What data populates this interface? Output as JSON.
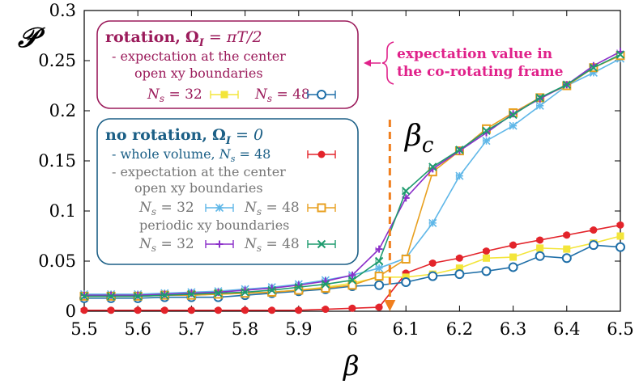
{
  "colors": {
    "rotation_box": "#9b1b5b",
    "no_rotation_box": "#1b5f86",
    "annotation": "#e0218a",
    "beta_c": "#f07f1e"
  },
  "chart_data": {
    "type": "line",
    "xlabel": "β",
    "ylabel": "𝒫",
    "xlim": [
      5.5,
      6.5
    ],
    "ylim": [
      0,
      0.3
    ],
    "xticks": [
      "5.5",
      "5.6",
      "5.7",
      "5.8",
      "5.9",
      "6",
      "6.1",
      "6.2",
      "6.3",
      "6.4",
      "6.5"
    ],
    "yticks": [
      "0",
      "0.05",
      "0.1",
      "0.15",
      "0.2",
      "0.25",
      "0.3"
    ],
    "beta_c": 6.07,
    "beta_c_label": "β",
    "beta_c_sub": "c",
    "series": [
      {
        "name": "whole volume N_s=48 (no rotation)",
        "color": "#e3242b",
        "marker": "dot",
        "x": [
          5.5,
          5.55,
          5.6,
          5.65,
          5.7,
          5.75,
          5.8,
          5.85,
          5.9,
          5.95,
          6.0,
          6.05,
          6.1,
          6.15,
          6.2,
          6.25,
          6.3,
          6.35,
          6.4,
          6.45,
          6.5
        ],
        "y": [
          0.001,
          0.001,
          0.001,
          0.001,
          0.001,
          0.001,
          0.001,
          0.001,
          0.001,
          0.002,
          0.003,
          0.004,
          0.038,
          0.048,
          0.053,
          0.06,
          0.066,
          0.071,
          0.076,
          0.081,
          0.086
        ]
      },
      {
        "name": "center open N_s=32 (rotation)",
        "color": "#f3e53a",
        "marker": "square",
        "x": [
          5.5,
          5.55,
          5.6,
          5.65,
          5.7,
          5.75,
          5.8,
          5.85,
          5.9,
          5.95,
          6.0,
          6.05,
          6.1,
          6.15,
          6.2,
          6.25,
          6.3,
          6.35,
          6.4,
          6.45,
          6.5
        ],
        "y": [
          0.015,
          0.015,
          0.015,
          0.016,
          0.016,
          0.017,
          0.018,
          0.019,
          0.021,
          0.024,
          0.028,
          0.034,
          0.034,
          0.037,
          0.043,
          0.053,
          0.054,
          0.063,
          0.062,
          0.068,
          0.075
        ]
      },
      {
        "name": "center open N_s=48 (rotation)",
        "color": "#1f6fa8",
        "marker": "circle",
        "x": [
          5.5,
          5.55,
          5.6,
          5.65,
          5.7,
          5.75,
          5.8,
          5.85,
          5.9,
          5.95,
          6.0,
          6.05,
          6.1,
          6.15,
          6.2,
          6.25,
          6.3,
          6.35,
          6.4,
          6.45,
          6.5
        ],
        "y": [
          0.013,
          0.013,
          0.013,
          0.014,
          0.014,
          0.014,
          0.016,
          0.018,
          0.02,
          0.022,
          0.025,
          0.026,
          0.029,
          0.035,
          0.037,
          0.04,
          0.044,
          0.055,
          0.053,
          0.066,
          0.064
        ]
      },
      {
        "name": "center open N_s=32 (no rotation)",
        "color": "#5fb7e8",
        "marker": "star",
        "x": [
          5.5,
          5.55,
          5.6,
          5.65,
          5.7,
          5.75,
          5.8,
          5.85,
          5.9,
          5.95,
          6.0,
          6.05,
          6.1,
          6.15,
          6.2,
          6.25,
          6.3,
          6.35,
          6.4,
          6.45,
          6.5
        ],
        "y": [
          0.017,
          0.017,
          0.017,
          0.018,
          0.019,
          0.02,
          0.022,
          0.024,
          0.027,
          0.031,
          0.036,
          0.043,
          0.053,
          0.088,
          0.135,
          0.17,
          0.185,
          0.205,
          0.225,
          0.238,
          0.252
        ]
      },
      {
        "name": "center open N_s=48 (no rotation)",
        "color": "#e8a020",
        "marker": "opensquare",
        "x": [
          5.5,
          5.55,
          5.6,
          5.65,
          5.7,
          5.75,
          5.8,
          5.85,
          5.9,
          5.95,
          6.0,
          6.05,
          6.1,
          6.15,
          6.2,
          6.25,
          6.3,
          6.35,
          6.4,
          6.45,
          6.5
        ],
        "y": [
          0.015,
          0.015,
          0.015,
          0.016,
          0.016,
          0.017,
          0.018,
          0.019,
          0.021,
          0.023,
          0.026,
          0.035,
          0.052,
          0.139,
          0.16,
          0.182,
          0.198,
          0.213,
          0.225,
          0.243,
          0.255
        ]
      },
      {
        "name": "center periodic N_s=32 (no rotation)",
        "color": "#8b2fc9",
        "marker": "plus",
        "x": [
          5.5,
          5.55,
          5.6,
          5.65,
          5.7,
          5.75,
          5.8,
          5.85,
          5.9,
          5.95,
          6.0,
          6.05,
          6.1,
          6.15,
          6.2,
          6.25,
          6.3,
          6.35,
          6.4,
          6.45,
          6.5
        ],
        "y": [
          0.016,
          0.016,
          0.016,
          0.017,
          0.018,
          0.019,
          0.021,
          0.023,
          0.026,
          0.03,
          0.036,
          0.062,
          0.113,
          0.142,
          0.16,
          0.178,
          0.197,
          0.212,
          0.226,
          0.245,
          0.259
        ]
      },
      {
        "name": "center periodic N_s=48 (no rotation)",
        "color": "#1e9b6e",
        "marker": "cross",
        "x": [
          5.5,
          5.55,
          5.6,
          5.65,
          5.7,
          5.75,
          5.8,
          5.85,
          5.9,
          5.95,
          6.0,
          6.05,
          6.1,
          6.15,
          6.2,
          6.25,
          6.3,
          6.35,
          6.4,
          6.45,
          6.5
        ],
        "y": [
          0.015,
          0.015,
          0.015,
          0.016,
          0.017,
          0.018,
          0.019,
          0.021,
          0.024,
          0.027,
          0.031,
          0.05,
          0.12,
          0.144,
          0.161,
          0.18,
          0.196,
          0.213,
          0.226,
          0.243,
          0.256
        ]
      }
    ]
  },
  "legend_rotation": {
    "title": "rotation,",
    "omega": "Ω",
    "omega_sub": "I",
    "omega_rhs": " = πT/2",
    "line1": "- expectation at the center",
    "line2": "open xy boundaries",
    "ns32": "N",
    "ns_sub": "s",
    "ns32_rhs": " = 32",
    "ns48_rhs": " = 48"
  },
  "legend_norotation": {
    "title": "no rotation,",
    "omega": "Ω",
    "omega_sub": "I",
    "omega_rhs": " = 0",
    "whole": "- whole volume, ",
    "whole_ns": "N",
    "whole_ns_sub": "s",
    "whole_rhs": " = 48",
    "line_center": "- expectation at the center",
    "open": "open xy boundaries",
    "periodic": "periodic xy boundaries",
    "ns": "N",
    "ns_sub": "s",
    "rhs32": " = 32",
    "rhs48": " = 48"
  },
  "annotation": {
    "line1": "expectation value in",
    "line2": "the co-rotating frame"
  }
}
